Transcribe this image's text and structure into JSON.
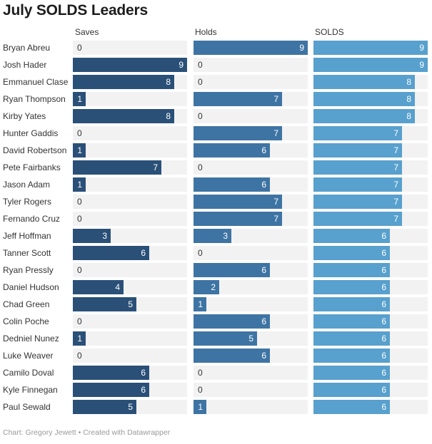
{
  "chart_data": {
    "type": "bar",
    "title": "July SOLDS Leaders",
    "columns": [
      "Saves",
      "Holds",
      "SOLDS"
    ],
    "colors": {
      "Saves": "#2a5078",
      "Holds": "#3e74a3",
      "SOLDS": "#58a0cd",
      "track": "#f2f2f2"
    },
    "xlim": [
      0,
      9
    ],
    "categories": [
      "Bryan Abreu",
      "Josh Hader",
      "Emmanuel Clase",
      "Ryan Thompson",
      "Kirby Yates",
      "Hunter Gaddis",
      "David Robertson",
      "Pete Fairbanks",
      "Jason Adam",
      "Tyler Rogers",
      "Fernando Cruz",
      "Jeff Hoffman",
      "Tanner Scott",
      "Ryan Pressly",
      "Daniel Hudson",
      "Chad Green",
      "Colin Poche",
      "Dedniel Nunez",
      "Luke Weaver",
      "Camilo Doval",
      "Kyle Finnegan",
      "Paul Sewald"
    ],
    "series": [
      {
        "name": "Saves",
        "values": [
          0,
          9,
          8,
          1,
          8,
          0,
          1,
          7,
          1,
          0,
          0,
          3,
          6,
          0,
          4,
          5,
          0,
          1,
          0,
          6,
          6,
          5
        ]
      },
      {
        "name": "Holds",
        "values": [
          9,
          0,
          0,
          7,
          0,
          7,
          6,
          0,
          6,
          7,
          7,
          3,
          0,
          6,
          2,
          1,
          6,
          5,
          6,
          0,
          0,
          1
        ]
      },
      {
        "name": "SOLDS",
        "values": [
          9,
          9,
          8,
          8,
          8,
          7,
          7,
          7,
          7,
          7,
          7,
          6,
          6,
          6,
          6,
          6,
          6,
          6,
          6,
          6,
          6,
          6
        ]
      }
    ]
  },
  "footer": "Chart: Gregory Jewett • Created with Datawrapper"
}
